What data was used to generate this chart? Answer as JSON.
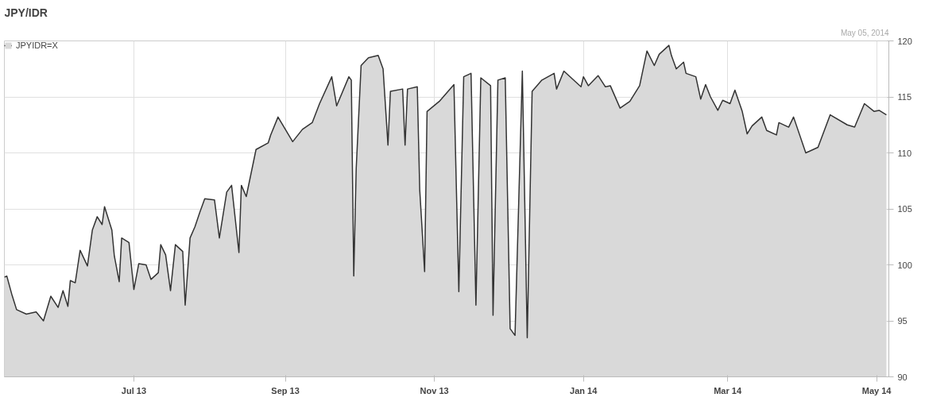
{
  "chart_data": {
    "type": "area",
    "title": "JPY/IDR",
    "annotations": [
      "May 05, 2014"
    ],
    "legend": "top left",
    "grid": true,
    "xlim": [
      "2013-05-09",
      "2014-05-06"
    ],
    "ylim": [
      90,
      120
    ],
    "xticks": [
      {
        "value": "2013-07-01",
        "label": "Jul 13"
      },
      {
        "value": "2013-09-01",
        "label": "Sep 13"
      },
      {
        "value": "2013-11-01",
        "label": "Nov 13"
      },
      {
        "value": "2014-01-01",
        "label": "Jan 14"
      },
      {
        "value": "2014-03-01",
        "label": "Mar 14"
      },
      {
        "value": "2014-05-01",
        "label": "May 14"
      }
    ],
    "yticks": [
      90,
      95,
      100,
      105,
      110,
      115,
      120
    ],
    "series": [
      {
        "name": "JPYIDR=X",
        "color": "#333333",
        "x": [
          "2013-05-09",
          "2013-05-10",
          "2013-05-12",
          "2013-05-14",
          "2013-05-18",
          "2013-05-22",
          "2013-05-25",
          "2013-05-28",
          "2013-05-31",
          "2013-06-02",
          "2013-06-04",
          "2013-06-05",
          "2013-06-07",
          "2013-06-09",
          "2013-06-12",
          "2013-06-14",
          "2013-06-16",
          "2013-06-18",
          "2013-06-19",
          "2013-06-22",
          "2013-06-23",
          "2013-06-25",
          "2013-06-26",
          "2013-06-29",
          "2013-07-01",
          "2013-07-03",
          "2013-07-06",
          "2013-07-08",
          "2013-07-11",
          "2013-07-12",
          "2013-07-14",
          "2013-07-16",
          "2013-07-18",
          "2013-07-21",
          "2013-07-22",
          "2013-07-24",
          "2013-07-26",
          "2013-07-28",
          "2013-07-30",
          "2013-08-03",
          "2013-08-05",
          "2013-08-08",
          "2013-08-10",
          "2013-08-13",
          "2013-08-14",
          "2013-08-16",
          "2013-08-20",
          "2013-08-25",
          "2013-08-26",
          "2013-08-29",
          "2013-09-04",
          "2013-09-08",
          "2013-09-12",
          "2013-09-15",
          "2013-09-20",
          "2013-09-22",
          "2013-09-27",
          "2013-09-28",
          "2013-09-29",
          "2013-09-30",
          "2013-10-02",
          "2013-10-05",
          "2013-10-09",
          "2013-10-11",
          "2013-10-13",
          "2013-10-14",
          "2013-10-19",
          "2013-10-20",
          "2013-10-21",
          "2013-10-25",
          "2013-10-26",
          "2013-10-28",
          "2013-10-29",
          "2013-11-03",
          "2013-11-09",
          "2013-11-11",
          "2013-11-13",
          "2013-11-16",
          "2013-11-18",
          "2013-11-20",
          "2013-11-24",
          "2013-11-25",
          "2013-11-27",
          "2013-11-30",
          "2013-12-02",
          "2013-12-04",
          "2013-12-07",
          "2013-12-09",
          "2013-12-11",
          "2013-12-15",
          "2013-12-20",
          "2013-12-21",
          "2013-12-24",
          "2013-12-31",
          "2014-01-01",
          "2014-01-03",
          "2014-01-07",
          "2014-01-10",
          "2014-01-12",
          "2014-01-16",
          "2014-01-20",
          "2014-01-24",
          "2014-01-27",
          "2014-01-30",
          "2014-02-01",
          "2014-02-05",
          "2014-02-06",
          "2014-02-08",
          "2014-02-11",
          "2014-02-12",
          "2014-02-16",
          "2014-02-18",
          "2014-02-20",
          "2014-02-22",
          "2014-02-25",
          "2014-02-27",
          "2014-03-02",
          "2014-03-04",
          "2014-03-07",
          "2014-03-09",
          "2014-03-11",
          "2014-03-15",
          "2014-03-17",
          "2014-03-21",
          "2014-03-22",
          "2014-03-26",
          "2014-03-28",
          "2014-04-02",
          "2014-04-07",
          "2014-04-12",
          "2014-04-19",
          "2014-04-22",
          "2014-04-26",
          "2014-04-30",
          "2014-05-02",
          "2014-05-05"
        ],
        "values": [
          98.9,
          99.0,
          97.4,
          96.0,
          95.6,
          95.8,
          95.0,
          97.2,
          96.2,
          97.7,
          96.3,
          98.6,
          98.4,
          101.3,
          99.9,
          103.1,
          104.3,
          103.6,
          105.2,
          103.1,
          100.8,
          98.5,
          102.4,
          102.0,
          97.8,
          100.1,
          100.0,
          98.7,
          99.3,
          101.8,
          100.9,
          97.7,
          101.8,
          101.2,
          96.4,
          102.4,
          103.4,
          104.7,
          105.9,
          105.8,
          102.4,
          106.5,
          107.1,
          101.1,
          107.1,
          106.1,
          110.3,
          110.9,
          111.6,
          113.2,
          111.0,
          112.1,
          112.7,
          114.4,
          116.8,
          114.2,
          116.8,
          116.5,
          99.0,
          108.6,
          117.8,
          118.5,
          118.7,
          117.5,
          110.7,
          115.5,
          115.7,
          110.7,
          115.7,
          115.9,
          106.7,
          99.4,
          113.7,
          114.6,
          116.1,
          97.6,
          116.8,
          117.1,
          96.4,
          116.7,
          116.0,
          95.5,
          116.5,
          116.7,
          94.3,
          93.7,
          117.3,
          93.5,
          115.5,
          116.5,
          117.1,
          115.7,
          117.3,
          115.9,
          116.8,
          116.0,
          116.9,
          115.9,
          116.0,
          114.0,
          114.6,
          116.0,
          119.1,
          117.8,
          118.8,
          119.6,
          118.7,
          117.5,
          118.1,
          117.1,
          116.8,
          114.8,
          116.1,
          115.0,
          113.8,
          114.7,
          114.4,
          115.6,
          113.7,
          111.7,
          112.4,
          113.2,
          112.0,
          111.6,
          112.7,
          112.3,
          113.2,
          110.0,
          110.5,
          113.4,
          112.5,
          112.3,
          114.4,
          113.7,
          113.8,
          113.4
        ]
      }
    ]
  }
}
